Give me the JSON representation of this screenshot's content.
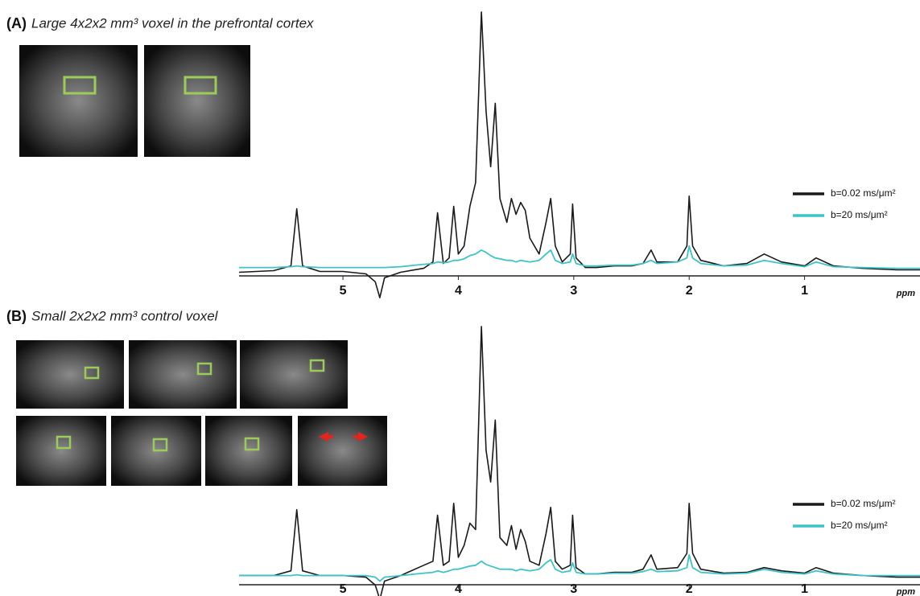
{
  "chart_data": [
    {
      "type": "line",
      "panel_label": "(A)",
      "title": "Large 4x2x2 mm³ voxel in the prefrontal cortex",
      "x_label": "ppm",
      "xlim": [
        5.9,
        0.0
      ],
      "xticks": [
        5,
        4,
        3,
        2,
        1
      ],
      "ylim": [
        -40,
        330
      ],
      "legend": "right",
      "x": [
        5.9,
        5.6,
        5.45,
        5.4,
        5.35,
        5.2,
        5.0,
        4.8,
        4.72,
        4.68,
        4.64,
        4.5,
        4.3,
        4.22,
        4.18,
        4.13,
        4.08,
        4.04,
        4.0,
        3.95,
        3.9,
        3.85,
        3.8,
        3.76,
        3.72,
        3.68,
        3.64,
        3.58,
        3.54,
        3.5,
        3.46,
        3.42,
        3.38,
        3.3,
        3.24,
        3.2,
        3.16,
        3.1,
        3.03,
        3.01,
        2.98,
        2.9,
        2.8,
        2.65,
        2.5,
        2.4,
        2.33,
        2.28,
        2.1,
        2.02,
        2.0,
        1.97,
        1.9,
        1.7,
        1.5,
        1.35,
        1.2,
        1.0,
        0.9,
        0.75,
        0.5,
        0.2,
        0.0
      ],
      "series": [
        {
          "name": "b=0.02 ms/μm²",
          "color": "#1a1a1a",
          "values": [
            -3,
            -1,
            5,
            77,
            5,
            -2,
            -2,
            -5,
            -15,
            -35,
            -10,
            -3,
            2,
            10,
            72,
            8,
            15,
            80,
            20,
            30,
            80,
            110,
            325,
            200,
            130,
            210,
            90,
            60,
            90,
            70,
            85,
            75,
            40,
            20,
            60,
            90,
            30,
            10,
            20,
            83,
            15,
            3,
            3,
            5,
            5,
            8,
            25,
            10,
            10,
            30,
            93,
            30,
            12,
            5,
            8,
            20,
            10,
            5,
            15,
            5,
            2,
            0,
            0
          ]
        },
        {
          "name": "b=20 ms/μm²",
          "color": "#3cc4c8",
          "values": [
            3,
            3,
            4,
            5,
            4,
            3,
            3,
            3,
            3,
            3,
            3,
            4,
            7,
            8,
            10,
            9,
            10,
            12,
            12,
            14,
            18,
            20,
            25,
            22,
            18,
            15,
            14,
            12,
            12,
            10,
            12,
            11,
            10,
            12,
            20,
            25,
            12,
            8,
            10,
            20,
            8,
            5,
            5,
            6,
            6,
            8,
            12,
            8,
            10,
            15,
            30,
            15,
            8,
            5,
            6,
            12,
            8,
            4,
            10,
            4,
            3,
            2,
            2
          ]
        }
      ]
    },
    {
      "type": "line",
      "panel_label": "(B)",
      "title": "Small 2x2x2 mm³ control voxel",
      "x_label": "ppm",
      "xlim": [
        5.9,
        0.0
      ],
      "xticks": [
        5,
        4,
        3,
        2,
        1
      ],
      "ylim": [
        -40,
        320
      ],
      "legend": "right",
      "x": [
        5.9,
        5.6,
        5.45,
        5.4,
        5.35,
        5.2,
        5.0,
        4.8,
        4.72,
        4.68,
        4.64,
        4.5,
        4.3,
        4.22,
        4.18,
        4.13,
        4.08,
        4.04,
        4.0,
        3.95,
        3.9,
        3.85,
        3.8,
        3.76,
        3.72,
        3.68,
        3.64,
        3.58,
        3.54,
        3.5,
        3.46,
        3.42,
        3.38,
        3.3,
        3.24,
        3.2,
        3.16,
        3.1,
        3.03,
        3.01,
        2.98,
        2.9,
        2.8,
        2.65,
        2.5,
        2.4,
        2.33,
        2.28,
        2.1,
        2.02,
        2.0,
        1.97,
        1.9,
        1.7,
        1.5,
        1.35,
        1.2,
        1.0,
        0.9,
        0.75,
        0.5,
        0.2,
        0.0
      ],
      "series": [
        {
          "name": "b=0.02 ms/μm²",
          "color": "#1a1a1a",
          "values": [
            2,
            2,
            8,
            85,
            8,
            2,
            2,
            0,
            -10,
            -28,
            -5,
            2,
            15,
            20,
            78,
            15,
            20,
            93,
            25,
            40,
            68,
            60,
            316,
            160,
            120,
            198,
            50,
            40,
            65,
            35,
            60,
            45,
            20,
            15,
            55,
            88,
            20,
            10,
            15,
            78,
            12,
            4,
            4,
            6,
            6,
            10,
            28,
            10,
            12,
            30,
            93,
            30,
            10,
            5,
            6,
            12,
            8,
            5,
            12,
            5,
            2,
            0,
            0
          ]
        },
        {
          "name": "b=20 ms/μm²",
          "color": "#3cc4c8",
          "values": [
            2,
            2,
            2,
            3,
            2,
            2,
            2,
            2,
            0,
            -5,
            0,
            2,
            5,
            6,
            8,
            6,
            8,
            10,
            10,
            12,
            14,
            15,
            20,
            16,
            14,
            12,
            10,
            10,
            10,
            8,
            10,
            9,
            8,
            10,
            18,
            22,
            10,
            6,
            8,
            18,
            6,
            4,
            4,
            5,
            5,
            7,
            10,
            7,
            8,
            12,
            28,
            12,
            6,
            4,
            5,
            10,
            6,
            4,
            8,
            4,
            2,
            2,
            2
          ]
        }
      ]
    }
  ]
}
